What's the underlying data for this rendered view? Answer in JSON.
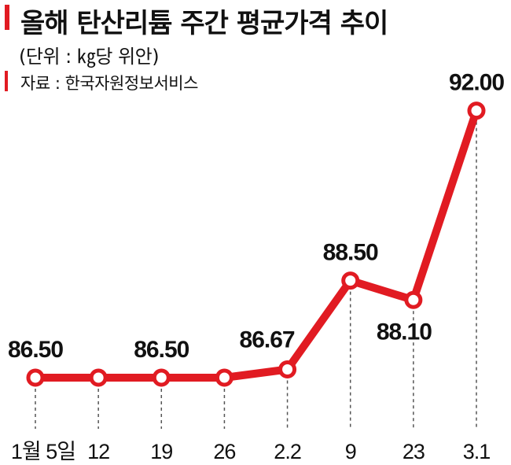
{
  "header": {
    "title": "올해 탄산리튬 주간 평균가격 추이",
    "unit": "(단위 : ㎏당 위안)",
    "source": "자료 : 한국자원정보서비스"
  },
  "colors": {
    "accent": "#e11b22",
    "line": "#e11b22",
    "marker_fill": "#ffffff",
    "guide": "#555555"
  },
  "chart_data": {
    "type": "line",
    "title": "올해 탄산리튬 주간 평균가격 추이",
    "subtitle": "(단위 : ㎏당 위안)",
    "xlabel": "",
    "ylabel": "",
    "categories": [
      "1월 5일",
      "12",
      "19",
      "26",
      "2.2",
      "9",
      "23",
      "3.1"
    ],
    "value_labels": [
      "86.50",
      "",
      "86.50",
      "",
      "86.67",
      "88.50",
      "88.10",
      "92.00"
    ],
    "series": [
      {
        "values": [
          86.5,
          86.5,
          86.5,
          86.5,
          86.67,
          88.5,
          88.1,
          92.0
        ]
      }
    ],
    "grid": false,
    "legend": "none",
    "markers": true
  }
}
